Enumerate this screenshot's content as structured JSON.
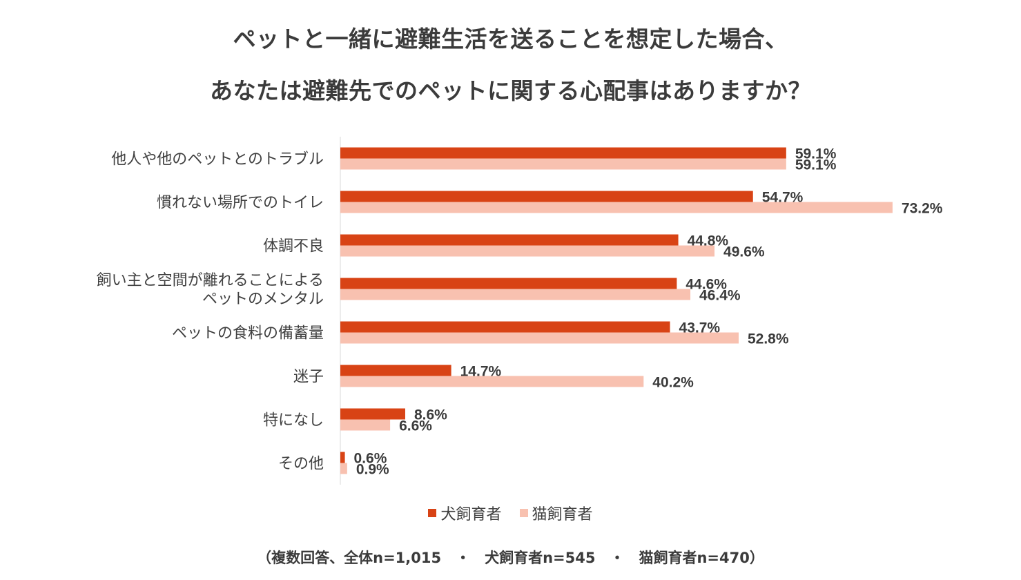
{
  "colors": {
    "dog": "#d84315",
    "cat": "#f8c1b0",
    "axis": "#d9d9d9",
    "text": "#404040"
  },
  "footnote": "（複数回答、全体n=1,015　・　犬飼育者n=545　・　猫飼育者n=470）",
  "chart_data": {
    "type": "bar",
    "orientation": "horizontal",
    "title": [
      "ペットと一緒に避難生活を送ることを想定した場合、",
      "あなたは避難先でのペットに関する心配事はありますか？"
    ],
    "categories": [
      [
        "他人や他のペットとのトラブル"
      ],
      [
        "慣れない場所でのトイレ"
      ],
      [
        "体調不良"
      ],
      [
        "飼い主と空間が離れることによる",
        "ペットのメンタル"
      ],
      [
        "ペットの食料の備蓄量"
      ],
      [
        "迷子"
      ],
      [
        "特になし"
      ],
      [
        "その他"
      ]
    ],
    "series": [
      {
        "name": "犬飼育者",
        "values": [
          59.1,
          54.7,
          44.8,
          44.6,
          43.7,
          14.7,
          8.6,
          0.6
        ],
        "labels": [
          "59.1%",
          "54.7%",
          "44.8%",
          "44.6%",
          "43.7%",
          "14.7%",
          "8.6%",
          "0.6%"
        ]
      },
      {
        "name": "猫飼育者",
        "values": [
          59.1,
          73.2,
          49.6,
          46.4,
          52.8,
          40.2,
          6.6,
          0.9
        ],
        "labels": [
          "59.1%",
          "73.2%",
          "49.6%",
          "46.4%",
          "52.8%",
          "40.2%",
          "6.6%",
          "0.9%"
        ]
      }
    ],
    "xlim": [
      0,
      100
    ],
    "legend_position": "bottom"
  }
}
